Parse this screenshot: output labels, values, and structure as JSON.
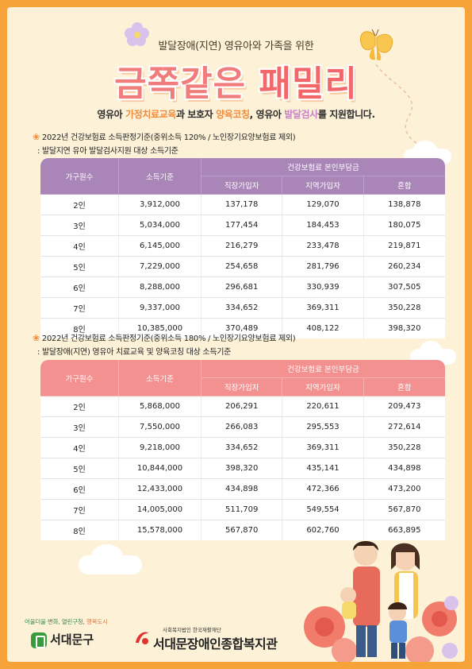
{
  "header": {
    "subtitle": "발달장애(지연) 영유아와 가족을 위한",
    "title_part1": "금쪽같은 ",
    "title_part2": "패밀리",
    "intro": {
      "t1": "영유아 ",
      "h1": "가정치료교육",
      "t2": "과 보호자 ",
      "h2": "양육코칭",
      "t3": ", 영유아 ",
      "h3": "발달검사",
      "t4": "를 지원합니다."
    }
  },
  "section1": {
    "note1": "2022년 건강보험료 소득판정기준(중위소득 120% / 노인장기요양보험료 제외)",
    "note2": ": 발달지연 유아 발달검사지원 대상 소득기준",
    "headers": {
      "household": "가구원수",
      "income": "소득기준",
      "group": "건강보험료 본인부담금",
      "employee": "직장가입자",
      "regional": "지역가입자",
      "mixed": "혼합"
    },
    "rows": [
      [
        "2인",
        "3,912,000",
        "137,178",
        "129,070",
        "138,878"
      ],
      [
        "3인",
        "5,034,000",
        "177,454",
        "184,453",
        "180,075"
      ],
      [
        "4인",
        "6,145,000",
        "216,279",
        "233,478",
        "219,871"
      ],
      [
        "5인",
        "7,229,000",
        "254,658",
        "281,796",
        "260,234"
      ],
      [
        "6인",
        "8,288,000",
        "296,681",
        "330,939",
        "307,505"
      ],
      [
        "7인",
        "9,337,000",
        "334,652",
        "369,311",
        "350,228"
      ],
      [
        "8인",
        "10,385,000",
        "370,489",
        "408,122",
        "398,320"
      ]
    ]
  },
  "section2": {
    "note1": "2022년 건강보험료 소득판정기준(중위소득 180% / 노인장기요양보험료 제외)",
    "note2": ": 발달장애(지연) 영유아 치료교육 및 양육코칭 대상 소득기준",
    "headers": {
      "household": "가구원수",
      "income": "소득기준",
      "group": "건강보험료 본인부담금",
      "employee": "직장가입자",
      "regional": "지역가입자",
      "mixed": "혼합"
    },
    "rows": [
      [
        "2인",
        "5,868,000",
        "206,291",
        "220,611",
        "209,473"
      ],
      [
        "3인",
        "7,550,000",
        "266,083",
        "295,553",
        "272,614"
      ],
      [
        "4인",
        "9,218,000",
        "334,652",
        "369,311",
        "350,228"
      ],
      [
        "5인",
        "10,844,000",
        "398,320",
        "435,141",
        "434,898"
      ],
      [
        "6인",
        "12,433,000",
        "434,898",
        "472,366",
        "473,200"
      ],
      [
        "7인",
        "14,005,000",
        "511,709",
        "549,554",
        "567,870"
      ],
      [
        "8인",
        "15,578,000",
        "567,870",
        "602,760",
        "663,895"
      ]
    ]
  },
  "footer": {
    "slogan_green": "어울더울 변화, 열린구청, ",
    "slogan_orange": "행복도시",
    "district": "서대문구",
    "org_small": "사회복지법인 한국재활재단",
    "org_name": "서대문장애인종합복지관"
  },
  "colors": {
    "border": "#f6a33a",
    "background": "#fdf2d8",
    "table1_header": "#a985b8",
    "table2_header": "#f39190",
    "title_pink": "#f07c7c"
  }
}
